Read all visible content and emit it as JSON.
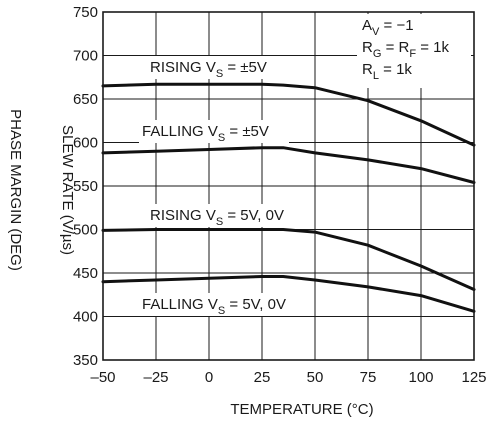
{
  "chart_data": {
    "type": "line",
    "xlabel": "TEMPERATURE (°C)",
    "ylabel": "SLEW RATE (V/µs)",
    "ylabel_secondary": "PHASE MARGIN (DEG)",
    "xlim": [
      -50,
      125
    ],
    "ylim": [
      350,
      750
    ],
    "xticks": [
      -50,
      -25,
      0,
      25,
      50,
      75,
      100,
      125
    ],
    "yticks": [
      350,
      400,
      450,
      500,
      550,
      600,
      650,
      700,
      750
    ],
    "grid": true,
    "annotation": [
      {
        "main": "A",
        "sub": "V",
        "rest": " = −1"
      },
      {
        "main": "R",
        "sub": "G",
        "rest": " = R",
        "sub2": "F",
        "rest2": " = 1k"
      },
      {
        "main": "R",
        "sub": "L",
        "rest": " = 1k"
      }
    ],
    "series": [
      {
        "label": {
          "pre": "RISING V",
          "sub": "S",
          "post": " = ±5V"
        },
        "x": [
          -50,
          -25,
          0,
          25,
          35,
          50,
          75,
          100,
          125
        ],
        "y": [
          665,
          667,
          667,
          667,
          666,
          663,
          648,
          625,
          597
        ]
      },
      {
        "label": {
          "pre": "FALLING V",
          "sub": "S",
          "post": " = ±5V"
        },
        "x": [
          -50,
          -25,
          0,
          25,
          35,
          50,
          75,
          100,
          125
        ],
        "y": [
          588,
          590,
          592,
          594,
          594,
          588,
          580,
          570,
          554
        ]
      },
      {
        "label": {
          "pre": "RISING V",
          "sub": "S",
          "post": " = 5V, 0V"
        },
        "x": [
          -50,
          -25,
          0,
          25,
          35,
          50,
          75,
          100,
          125
        ],
        "y": [
          499,
          500,
          500,
          500,
          500,
          497,
          482,
          458,
          431
        ]
      },
      {
        "label": {
          "pre": "FALLING V",
          "sub": "S",
          "post": " = 5V, 0V"
        },
        "x": [
          -50,
          -25,
          0,
          25,
          35,
          50,
          75,
          100,
          125
        ],
        "y": [
          440,
          442,
          444,
          446,
          446,
          442,
          434,
          424,
          406
        ]
      }
    ]
  }
}
